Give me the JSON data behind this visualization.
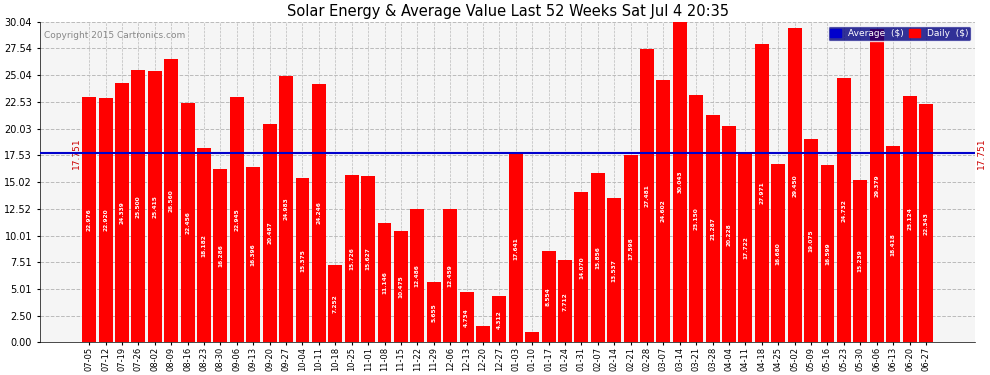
{
  "title": "Solar Energy & Average Value Last 52 Weeks Sat Jul 4 20:35",
  "copyright": "Copyright 2015 Cartronics.com",
  "average_line": 17.751,
  "average_label": "17.751",
  "bar_color": "#ff0000",
  "average_line_color": "#0000cc",
  "background_color": "#ffffff",
  "grid_color": "#bbbbbb",
  "yticks": [
    0.0,
    2.5,
    5.01,
    7.51,
    10.01,
    12.52,
    15.02,
    17.53,
    20.03,
    22.53,
    25.04,
    27.54,
    30.04
  ],
  "legend_avg_color": "#0000cc",
  "legend_daily_color": "#ff0000",
  "categories": [
    "07-05",
    "07-12",
    "07-19",
    "07-26",
    "08-02",
    "08-09",
    "08-16",
    "08-23",
    "08-30",
    "09-06",
    "09-13",
    "09-20",
    "09-27",
    "10-04",
    "10-11",
    "10-18",
    "10-25",
    "11-01",
    "11-08",
    "11-15",
    "11-22",
    "11-29",
    "12-06",
    "12-13",
    "12-20",
    "12-27",
    "01-03",
    "01-10",
    "01-17",
    "01-24",
    "01-31",
    "02-07",
    "02-14",
    "02-21",
    "02-28",
    "03-07",
    "03-14",
    "03-21",
    "03-28",
    "04-04",
    "04-11",
    "04-18",
    "04-25",
    "05-02",
    "05-09",
    "05-16",
    "05-23",
    "05-30",
    "06-06",
    "06-13",
    "06-20",
    "06-27"
  ],
  "values": [
    22.976,
    22.92,
    24.339,
    25.5,
    25.415,
    26.56,
    22.456,
    18.182,
    16.286,
    22.945,
    16.396,
    20.487,
    24.983,
    15.375,
    24.246,
    7.252,
    15.726,
    15.627,
    11.146,
    10.475,
    12.486,
    5.655,
    12.459,
    4.734,
    1.529,
    4.312,
    17.641,
    1.006,
    8.554,
    7.712,
    14.07,
    15.856,
    13.537,
    17.598,
    27.481,
    24.602,
    30.043,
    23.15,
    21.287,
    20.228,
    17.722,
    27.971,
    16.68,
    29.45,
    19.075,
    16.599,
    24.732,
    15.239,
    29.379,
    18.418,
    23.124,
    22.343
  ]
}
